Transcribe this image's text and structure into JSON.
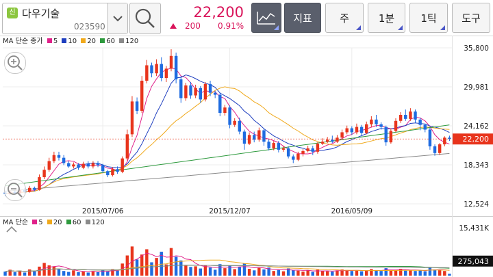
{
  "stock": {
    "badge": "신",
    "name": "다우기술",
    "code": "023590"
  },
  "quote": {
    "price": "22,200",
    "change": "200",
    "change_pct": "0.91%"
  },
  "toolbar": {
    "indicator_label": "지표",
    "week_label": "주",
    "minute_label": "1분",
    "tick_label": "1틱",
    "tools_label": "도구"
  },
  "main_legend": {
    "title": "MA 단순 종가",
    "items": [
      {
        "label": "5",
        "color": "#e0218a"
      },
      {
        "label": "10",
        "color": "#1f3fbf"
      },
      {
        "label": "20",
        "color": "#f0a91c"
      },
      {
        "label": "60",
        "color": "#2e9a3e"
      },
      {
        "label": "120",
        "color": "#8a8a8a"
      }
    ]
  },
  "volume_legend": {
    "title": "MA 단순",
    "items": [
      {
        "label": "5",
        "color": "#e0218a"
      },
      {
        "label": "20",
        "color": "#f0a91c"
      },
      {
        "label": "60",
        "color": "#2e9a3e"
      },
      {
        "label": "120",
        "color": "#8a8a8a"
      }
    ]
  },
  "price_axis": {
    "ticks": [
      "35,800",
      "29,981",
      "24,162",
      "18,343",
      "12,524"
    ],
    "current": "22,200"
  },
  "volume_axis": {
    "max": "15,431K",
    "current": "275,043"
  },
  "date_axis": {
    "labels": [
      "2015/07/06",
      "2015/12/07",
      "2016/05/09"
    ]
  },
  "colors": {
    "up": "#e8341c",
    "down": "#1e6be0",
    "accent": "#d9145a",
    "toolbar_dark": "#5a5f6c"
  },
  "icons": {
    "search": "search-icon",
    "dropdown": "chevron-down-icon",
    "chart_type": "line-chart-icon",
    "zoom_in": "zoom-in-icon",
    "zoom_out": "zoom-out-icon",
    "collapse": "chevron-up-icon"
  },
  "chart_data": [
    {
      "type": "candlestick",
      "title": "",
      "y_range": [
        12524,
        35800
      ],
      "y_ticks": [
        35800,
        29981,
        24162,
        18343,
        12524
      ],
      "x_tick_labels": [
        "2015/07/06",
        "2015/12/07",
        "2016/05/09"
      ],
      "current_price": 22200,
      "grid": true,
      "candles": [
        [
          14200,
          14000,
          14500,
          13700
        ],
        [
          14000,
          14300,
          14600,
          13800
        ],
        [
          14300,
          14100,
          14500,
          13900
        ],
        [
          14100,
          14600,
          14800,
          14000
        ],
        [
          14600,
          14300,
          14900,
          14100
        ],
        [
          14300,
          14900,
          15200,
          14200
        ],
        [
          14900,
          14600,
          15100,
          14400
        ],
        [
          14600,
          16500,
          16900,
          14500
        ],
        [
          16500,
          17600,
          18100,
          16200
        ],
        [
          17600,
          18900,
          19400,
          17300
        ],
        [
          18900,
          19800,
          20300,
          18600
        ],
        [
          19800,
          19400,
          20300,
          19000
        ],
        [
          19400,
          18600,
          19800,
          18300
        ],
        [
          18600,
          18100,
          18900,
          17900
        ],
        [
          18100,
          18400,
          18700,
          17800
        ],
        [
          18400,
          17900,
          18600,
          17600
        ],
        [
          17900,
          18500,
          18800,
          17700
        ],
        [
          18500,
          18100,
          18900,
          17800
        ],
        [
          18100,
          18600,
          18900,
          17800
        ],
        [
          18600,
          18300,
          18900,
          18000
        ],
        [
          18300,
          17400,
          18500,
          17100
        ],
        [
          17400,
          16800,
          17600,
          16500
        ],
        [
          16800,
          17700,
          18000,
          16600
        ],
        [
          17700,
          17300,
          18100,
          17000
        ],
        [
          17300,
          19300,
          19600,
          17100
        ],
        [
          19300,
          22900,
          23600,
          19000
        ],
        [
          22900,
          27800,
          28600,
          22500
        ],
        [
          27800,
          26400,
          28400,
          25900
        ],
        [
          26400,
          30900,
          31600,
          26100
        ],
        [
          30900,
          33200,
          34000,
          30500
        ],
        [
          33200,
          32000,
          33600,
          31400
        ],
        [
          32000,
          33400,
          34100,
          31600
        ],
        [
          33400,
          31300,
          34400,
          30800
        ],
        [
          31300,
          32700,
          33100,
          30700
        ],
        [
          32700,
          34600,
          35600,
          32300
        ],
        [
          34600,
          31100,
          35100,
          30500
        ],
        [
          31100,
          28300,
          31600,
          27600
        ],
        [
          28300,
          30200,
          30600,
          27900
        ],
        [
          30200,
          28700,
          30700,
          28200
        ],
        [
          28700,
          29800,
          30300,
          28300
        ],
        [
          29800,
          28100,
          30100,
          27600
        ],
        [
          28100,
          30400,
          30700,
          27800
        ],
        [
          30400,
          29100,
          30900,
          28600
        ],
        [
          29100,
          28800,
          29400,
          28300
        ],
        [
          28800,
          26100,
          29100,
          25600
        ],
        [
          26100,
          26900,
          27300,
          25700
        ],
        [
          26900,
          24300,
          27200,
          23800
        ],
        [
          24300,
          24900,
          25300,
          24000
        ],
        [
          24900,
          23300,
          25400,
          22900
        ],
        [
          23300,
          21500,
          23600,
          20600
        ],
        [
          21500,
          22800,
          23200,
          21300
        ],
        [
          22800,
          22100,
          23300,
          21700
        ],
        [
          22100,
          23500,
          23900,
          21800
        ],
        [
          23500,
          21800,
          23800,
          21200
        ],
        [
          21800,
          20800,
          22200,
          20500
        ],
        [
          20800,
          21600,
          21900,
          20500
        ],
        [
          21600,
          20600,
          21900,
          20200
        ],
        [
          20600,
          20800,
          21200,
          20300
        ],
        [
          20800,
          19600,
          21100,
          19300
        ],
        [
          19600,
          19100,
          19900,
          18600
        ],
        [
          19100,
          20000,
          20300,
          18900
        ],
        [
          20000,
          20400,
          20700,
          19600
        ],
        [
          20400,
          20800,
          21200,
          20200
        ],
        [
          20800,
          20300,
          21200,
          19800
        ],
        [
          20300,
          21500,
          21700,
          20000
        ],
        [
          21500,
          21800,
          22300,
          21300
        ],
        [
          21800,
          22100,
          22500,
          21600
        ],
        [
          22100,
          21800,
          22700,
          21600
        ],
        [
          21800,
          22400,
          22800,
          21600
        ],
        [
          22400,
          23200,
          23600,
          22100
        ],
        [
          23200,
          23800,
          24200,
          22900
        ],
        [
          23800,
          23200,
          24100,
          22800
        ],
        [
          23200,
          24000,
          24500,
          22900
        ],
        [
          24000,
          23100,
          24300,
          22600
        ],
        [
          23100,
          24400,
          24800,
          22900
        ],
        [
          24400,
          25100,
          25600,
          24000
        ],
        [
          25100,
          24400,
          25800,
          24000
        ],
        [
          24400,
          24000,
          24700,
          23600
        ],
        [
          24000,
          21700,
          24200,
          21200
        ],
        [
          21700,
          23400,
          23800,
          21500
        ],
        [
          23400,
          24900,
          25300,
          23200
        ],
        [
          24900,
          25800,
          26200,
          24600
        ],
        [
          25800,
          25200,
          26600,
          24900
        ],
        [
          25200,
          26300,
          26800,
          24900
        ],
        [
          26300,
          25100,
          26600,
          24600
        ],
        [
          25100,
          24300,
          25400,
          23500
        ],
        [
          24300,
          23600,
          24500,
          23200
        ],
        [
          23600,
          21100,
          23900,
          20600
        ],
        [
          21100,
          20100,
          21400,
          19700
        ],
        [
          20100,
          21400,
          21600,
          19800
        ],
        [
          21400,
          22400,
          22600,
          21100
        ],
        [
          22400,
          22200,
          22700,
          21900
        ]
      ]
    },
    {
      "type": "bar",
      "title": "",
      "y_range": [
        0,
        15431000
      ],
      "y_max_label": "15,431K",
      "current_volume": 275043,
      "values": [
        1300000,
        1900000,
        1100000,
        1600000,
        1000000,
        2000000,
        1400000,
        2900000,
        4100000,
        3300000,
        3000000,
        2200000,
        1500000,
        1200000,
        1700000,
        1100000,
        1300000,
        1000000,
        1500000,
        1200000,
        1800000,
        1400000,
        2100000,
        1600000,
        3900000,
        6500000,
        9400000,
        5200000,
        6800000,
        8500000,
        4300000,
        5700000,
        7700000,
        3600000,
        8900000,
        6100000,
        4900000,
        3200000,
        2800000,
        3000000,
        2300000,
        3300000,
        2600000,
        1900000,
        3700000,
        2400000,
        3200000,
        2100000,
        2800000,
        3900000,
        2200000,
        1700000,
        2500000,
        2000000,
        2600000,
        1500000,
        1800000,
        1400000,
        2300000,
        1800000,
        1600000,
        1300000,
        1700000,
        1200000,
        1900000,
        1500000,
        1400000,
        1300000,
        1700000,
        2000000,
        1800000,
        1500000,
        1600000,
        1400000,
        1700000,
        2100000,
        1600000,
        1500000,
        2400000,
        1700000,
        1900000,
        2200000,
        1600000,
        1800000,
        1500000,
        1700000,
        1400000,
        2700000,
        2000000,
        1800000,
        1500000,
        600000
      ]
    }
  ]
}
